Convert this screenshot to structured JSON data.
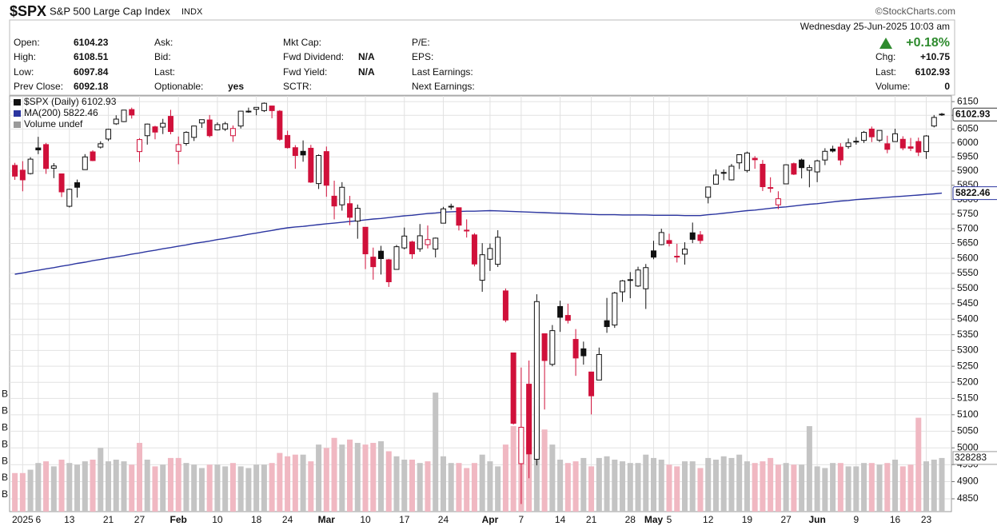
{
  "header": {
    "symbol": "$SPX",
    "name": "S&P 500 Large Cap Index",
    "exchange": "INDX",
    "brand": "©StockCharts.com",
    "datetime": "Wednesday  25-Jun-2025 10:03 am",
    "change_pct": "+0.18%",
    "fields": [
      [
        [
          "Open:",
          "6104.23"
        ],
        [
          "High:",
          "6108.51"
        ],
        [
          "Low:",
          "6097.84"
        ],
        [
          "Prev Close:",
          "6092.18"
        ]
      ],
      [
        [
          "Ask:"
        ],
        [
          "Bid:"
        ],
        [
          "Last:"
        ],
        [
          "Optionable:",
          "yes"
        ]
      ],
      [
        [
          "Mkt Cap:"
        ],
        [
          "Fwd Dividend:",
          "N/A"
        ],
        [
          "Fwd Yield:",
          "N/A"
        ],
        [
          "SCTR:"
        ]
      ],
      [
        [
          "P/E:"
        ],
        [
          "EPS:"
        ],
        [
          "Last Earnings:"
        ],
        [
          "Next Earnings:"
        ]
      ]
    ],
    "right_fields": [
      [
        "Chg:",
        "+10.75"
      ],
      [
        "Last:",
        "6102.93"
      ],
      [
        "Volume:",
        "0"
      ]
    ]
  },
  "chart_data": {
    "type": "candlestick",
    "legend": [
      "$SPX (Daily) 6102.93",
      "MA(200) 5822.46",
      "Volume undef"
    ],
    "categories": [
      null,
      "2025",
      null,
      "6",
      null,
      null,
      null,
      "13",
      null,
      null,
      null,
      null,
      "21",
      null,
      null,
      null,
      "27",
      null,
      null,
      null,
      null,
      "Feb",
      null,
      null,
      null,
      null,
      "10",
      null,
      null,
      null,
      null,
      "18",
      null,
      null,
      null,
      "24",
      null,
      null,
      null,
      null,
      "Mar",
      null,
      null,
      null,
      null,
      "10",
      null,
      null,
      null,
      null,
      "17",
      null,
      null,
      null,
      null,
      "24",
      null,
      null,
      null,
      null,
      null,
      "Apr",
      null,
      null,
      null,
      "7",
      null,
      null,
      null,
      null,
      "14",
      null,
      null,
      null,
      "21",
      null,
      null,
      null,
      null,
      "28",
      null,
      null,
      "May",
      null,
      "5",
      null,
      null,
      null,
      null,
      "12",
      null,
      null,
      null,
      null,
      "19",
      null,
      null,
      null,
      null,
      "27",
      null,
      null,
      null,
      "Jun",
      null,
      null,
      null,
      null,
      "9",
      null,
      null,
      null,
      null,
      "16",
      null,
      null,
      null,
      "23",
      null,
      null
    ],
    "open": [
      5920,
      5903,
      5891,
      5982,
      5994,
      5910,
      5890,
      5777,
      5859,
      5905,
      5968,
      5985,
      6014,
      6069,
      6077,
      6121,
      5969,
      6026,
      6058,
      6057,
      6096,
      5970,
      5998,
      6020,
      6072,
      6083,
      6047,
      6050,
      6026,
      6061,
      6115,
      6122,
      6117,
      6134,
      6115,
      6027,
      5983,
      5970,
      5981,
      5856,
      5969,
      5812,
      5782,
      5786,
      5726,
      5705,
      5604,
      5624,
      5595,
      5563,
      5635,
      5655,
      5632,
      5646,
      5631,
      5719,
      5775,
      5772,
      5695,
      5679,
      5527,
      5597,
      5580,
      5492,
      5292,
      4953,
      5194,
      4966,
      5353,
      5256,
      5441,
      5412,
      5335,
      5305,
      5232,
      5207,
      5395,
      5381,
      5489,
      5529,
      5508,
      5499,
      5625,
      5646,
      5660,
      5605,
      5614,
      5686,
      5679,
      5808,
      5854,
      5895,
      5869,
      5929,
      5902,
      5945,
      5924,
      5841,
      5782,
      5855,
      5926,
      5939,
      5903,
      5897,
      5939,
      5978,
      5985,
      5987,
      6005,
      6009,
      6050,
      6010,
      5997,
      6005,
      6013,
      5986,
      6005,
      5969,
      6061,
      6104.23
    ],
    "high": [
      5929,
      5935,
      5949,
      6022,
      6000,
      5928,
      5890,
      5838,
      5870,
      5960,
      5974,
      6006,
      6051,
      6100,
      6119,
      6128,
      6017,
      6070,
      6062,
      6087,
      6120,
      6023,
      6042,
      6062,
      6084,
      6101,
      6074,
      6076,
      6063,
      6116,
      6128,
      6129,
      6147,
      6135,
      6119,
      6044,
      5992,
      6009,
      5993,
      5959,
      5987,
      5866,
      5861,
      5813,
      5783,
      5705,
      5636,
      5642,
      5598,
      5645,
      5704,
      5659,
      5716,
      5711,
      5670,
      5775,
      5786,
      5773,
      5732,
      5685,
      5651,
      5650,
      5695,
      5500,
      5292,
      5246,
      5268,
      5481,
      5353,
      5381,
      5460,
      5450,
      5368,
      5328,
      5232,
      5309,
      5469,
      5489,
      5528,
      5554,
      5572,
      5581,
      5659,
      5700,
      5683,
      5649,
      5654,
      5721,
      5692,
      5845,
      5906,
      5906,
      5925,
      5958,
      5969,
      5953,
      5939,
      5878,
      5829,
      5924,
      5930,
      5944,
      5922,
      5940,
      5981,
      5990,
      5999,
      6016,
      6021,
      6043,
      6059,
      6045,
      6026,
      6051,
      6024,
      6018,
      6019,
      6028,
      6101,
      6108.51
    ],
    "low": [
      5869,
      5829,
      5888,
      5960,
      5890,
      5875,
      5809,
      5773,
      5807,
      5905,
      5935,
      5980,
      6007,
      6065,
      6075,
      6088,
      5932,
      5994,
      6013,
      6032,
      6031,
      5924,
      5990,
      6007,
      6054,
      6020,
      6045,
      6043,
      6004,
      6052,
      6109,
      6100,
      6112,
      6089,
      6008,
      5980,
      5908,
      5933,
      5858,
      5837,
      5810,
      5732,
      5762,
      5712,
      5666,
      5564,
      5529,
      5546,
      5505,
      5563,
      5630,
      5598,
      5622,
      5633,
      5603,
      5719,
      5765,
      5694,
      5670,
      5573,
      5489,
      5558,
      5571,
      5390,
      5070,
      4835,
      4910,
      4948,
      5116,
      5250,
      5359,
      5386,
      5220,
      5255,
      5101,
      5207,
      5356,
      5372,
      5456,
      5468,
      5505,
      5433,
      5597,
      5644,
      5640,
      5586,
      5579,
      5651,
      5649,
      5787,
      5853,
      5868,
      5867,
      5907,
      5895,
      5908,
      5830,
      5825,
      5767,
      5854,
      5886,
      5874,
      5843,
      5861,
      5921,
      5966,
      5921,
      5979,
      5994,
      6000,
      6003,
      6003,
      5963,
      6004,
      5974,
      5971,
      5953,
      5943,
      6056,
      6097.84
    ],
    "close": [
      5882,
      5869,
      5942,
      5975,
      5909,
      5918,
      5827,
      5836,
      5843,
      5950,
      5937,
      5997,
      6049,
      6086,
      6119,
      6101,
      6012,
      6068,
      6039,
      6071,
      6041,
      5994,
      6038,
      6061,
      6084,
      6026,
      6066,
      6069,
      6052,
      6115,
      6115,
      6129,
      6144,
      6117,
      6013,
      5983,
      5955,
      5957,
      5861,
      5955,
      5850,
      5778,
      5843,
      5739,
      5770,
      5615,
      5572,
      5599,
      5522,
      5639,
      5675,
      5615,
      5676,
      5663,
      5668,
      5768,
      5777,
      5712,
      5693,
      5581,
      5612,
      5633,
      5671,
      5397,
      5074,
      5062,
      4982,
      5457,
      5268,
      5363,
      5406,
      5396,
      5276,
      5283,
      5158,
      5287,
      5376,
      5485,
      5525,
      5529,
      5561,
      5569,
      5604,
      5687,
      5650,
      5607,
      5631,
      5664,
      5660,
      5844,
      5886,
      5892,
      5917,
      5958,
      5964,
      5940,
      5845,
      5842,
      5803,
      5922,
      5889,
      5912,
      5912,
      5936,
      5970,
      5971,
      5939,
      6000,
      6006,
      6038,
      6022,
      6045,
      5977,
      6033,
      5982,
      5981,
      5967,
      6025,
      6092.18,
      6102.93
    ],
    "up_color": "#111111",
    "down_color": "#d0103a",
    "ma": {
      "color": "#2b35a0",
      "values": [
        5547,
        5551,
        5556,
        5560,
        5565,
        5569,
        5574,
        5578,
        5583,
        5587,
        5592,
        5596,
        5601,
        5605,
        5609,
        5614,
        5618,
        5623,
        5627,
        5632,
        5636,
        5641,
        5645,
        5650,
        5654,
        5658,
        5663,
        5667,
        5672,
        5676,
        5681,
        5685,
        5690,
        5694,
        5699,
        5703,
        5706,
        5708,
        5711,
        5714,
        5717,
        5719,
        5722,
        5725,
        5727,
        5730,
        5733,
        5735,
        5738,
        5741,
        5744,
        5746,
        5749,
        5752,
        5754,
        5757,
        5758,
        5759,
        5760,
        5760,
        5761,
        5762,
        5761,
        5760,
        5759,
        5758,
        5757,
        5756,
        5755,
        5754,
        5753,
        5752,
        5751,
        5750,
        5749,
        5748,
        5748,
        5748,
        5747,
        5747,
        5747,
        5747,
        5746,
        5746,
        5746,
        5746,
        5745,
        5745,
        5745,
        5748,
        5750,
        5753,
        5756,
        5759,
        5762,
        5764,
        5767,
        5770,
        5773,
        5775,
        5778,
        5781,
        5784,
        5786,
        5789,
        5792,
        5795,
        5797,
        5800,
        5802,
        5804,
        5806,
        5808,
        5810,
        5812,
        5814,
        5816,
        5818,
        5820,
        5822.46
      ]
    },
    "volume": {
      "up_color": "#c4c4c4",
      "down_color": "#f0b8c2",
      "last_label": "328283",
      "values": [
        2.3,
        2.3,
        2.5,
        2.9,
        3.0,
        2.7,
        3.1,
        2.9,
        2.8,
        3.0,
        3.1,
        3.8,
        3.0,
        3.1,
        3.0,
        2.8,
        4.1,
        3.1,
        2.7,
        2.8,
        3.2,
        3.2,
        2.9,
        2.8,
        2.6,
        2.8,
        2.8,
        2.7,
        2.9,
        2.7,
        2.6,
        2.8,
        2.8,
        2.9,
        3.5,
        3.3,
        3.4,
        3.4,
        3.0,
        4.0,
        3.8,
        4.4,
        4.0,
        4.3,
        4.1,
        4.0,
        4.1,
        4.2,
        3.6,
        3.3,
        3.1,
        3.1,
        2.9,
        3.0,
        7.1,
        3.3,
        2.9,
        2.9,
        2.6,
        2.9,
        3.4,
        3.0,
        2.7,
        4.0,
        5.1,
        5.0,
        5.0,
        6.3,
        4.9,
        4.0,
        3.1,
        2.9,
        3.0,
        3.2,
        2.7,
        3.2,
        3.3,
        3.1,
        3.0,
        2.9,
        2.9,
        3.4,
        3.2,
        3.1,
        2.8,
        2.7,
        3.0,
        3.0,
        2.6,
        3.2,
        3.1,
        3.3,
        3.2,
        3.4,
        3.0,
        2.9,
        3.0,
        3.2,
        2.8,
        2.9,
        2.8,
        2.8,
        5.1,
        2.7,
        2.6,
        2.9,
        2.9,
        2.7,
        2.7,
        2.9,
        2.9,
        2.8,
        2.9,
        3.1,
        2.7,
        2.8,
        5.6,
        3.0,
        3.1,
        3.2
      ],
      "ylim": [
        0,
        24.8
      ],
      "yticks": [
        {
          "value": 1,
          "label": "B"
        },
        {
          "value": 2,
          "label": "B"
        },
        {
          "value": 3,
          "label": "B"
        },
        {
          "value": 4,
          "label": "B"
        },
        {
          "value": 5,
          "label": "B"
        },
        {
          "value": 6,
          "label": "B"
        },
        {
          "value": 7,
          "label": "B"
        }
      ]
    },
    "log_scale": true,
    "grid": true,
    "ylim": [
      4813,
      6171
    ],
    "yticks": [
      4850,
      4900,
      4950,
      5000,
      5050,
      5100,
      5150,
      5200,
      5250,
      5300,
      5350,
      5400,
      5450,
      5500,
      5550,
      5600,
      5650,
      5700,
      5750,
      5800,
      5850,
      5900,
      5950,
      6000,
      6050,
      6100,
      6150
    ]
  }
}
